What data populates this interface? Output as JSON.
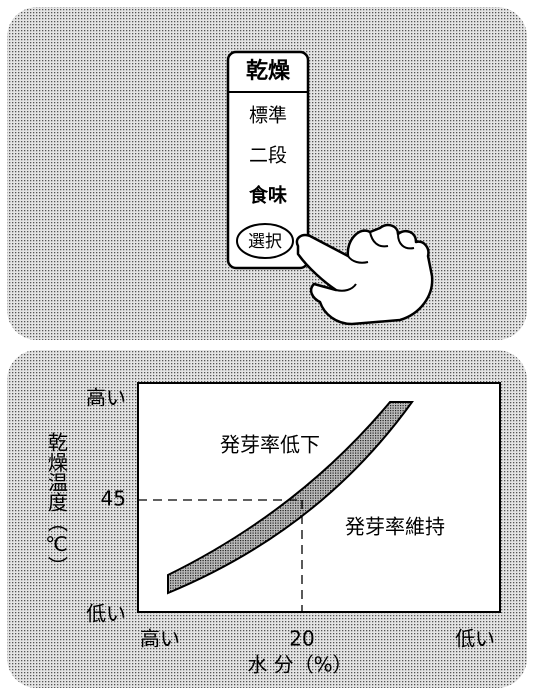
{
  "control_panel": {
    "header": "乾燥",
    "buttons": [
      "標準",
      "二段",
      "食味"
    ],
    "select_button": "選択"
  },
  "graph": {
    "y_axis_title": "乾燥温度（℃）",
    "y_labels": {
      "high": "高い",
      "mark": "45",
      "low": "低い"
    },
    "x_labels": {
      "high": "高い",
      "mark": "20",
      "low": "低い"
    },
    "x_axis_title": "水 分（%）",
    "regions": [
      "発芽率低下",
      "発芽率維持"
    ]
  }
}
